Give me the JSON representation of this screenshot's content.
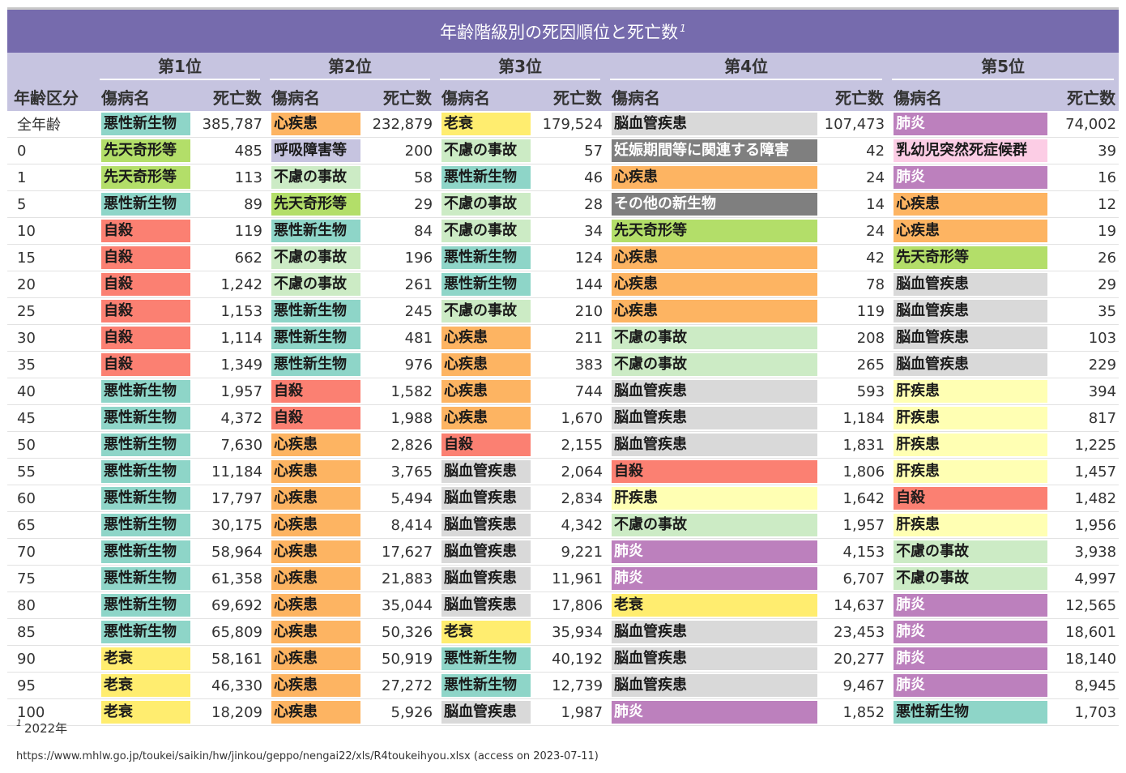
{
  "title": "年齢階級別の死因順位と死亡数",
  "title_note_mark": "1",
  "header": {
    "ranks": [
      "第1位",
      "第2位",
      "第3位",
      "第4位",
      "第5位"
    ],
    "age_label": "年齢区分",
    "cause_label": "傷病名",
    "count_label": "死亡数"
  },
  "colors": {
    "悪性新生物": "#8ed5c8",
    "心疾患": "#fdb462",
    "老衰": "#ffed6f",
    "脳血管疾患": "#d9d9d9",
    "肺炎": "#bc80bd",
    "先天奇形等": "#b3de69",
    "呼吸障害等": "#c6c4e0",
    "不慮の事故": "#ccebc5",
    "妊娠期間等に関連する障害": "#7f7f7f",
    "乳幼児突然死症候群": "#fccde5",
    "自殺": "#fb8072",
    "その他の新生物": "#7f7f7f",
    "肝疾患": "#ffffb3"
  },
  "rows": [
    {
      "age": "全年齢",
      "causes": [
        [
          "悪性新生物",
          "385,787"
        ],
        [
          "心疾患",
          "232,879"
        ],
        [
          "老衰",
          "179,524"
        ],
        [
          "脳血管疾患",
          "107,473"
        ],
        [
          "肺炎",
          "74,002"
        ]
      ]
    },
    {
      "age": "0",
      "causes": [
        [
          "先天奇形等",
          "485"
        ],
        [
          "呼吸障害等",
          "200"
        ],
        [
          "不慮の事故",
          "57"
        ],
        [
          "妊娠期間等に関連する障害",
          "42"
        ],
        [
          "乳幼児突然死症候群",
          "39"
        ]
      ]
    },
    {
      "age": "1",
      "causes": [
        [
          "先天奇形等",
          "113"
        ],
        [
          "不慮の事故",
          "58"
        ],
        [
          "悪性新生物",
          "46"
        ],
        [
          "心疾患",
          "24"
        ],
        [
          "肺炎",
          "16"
        ]
      ]
    },
    {
      "age": "5",
      "causes": [
        [
          "悪性新生物",
          "89"
        ],
        [
          "先天奇形等",
          "29"
        ],
        [
          "不慮の事故",
          "28"
        ],
        [
          "その他の新生物",
          "14"
        ],
        [
          "心疾患",
          "12"
        ]
      ]
    },
    {
      "age": "10",
      "causes": [
        [
          "自殺",
          "119"
        ],
        [
          "悪性新生物",
          "84"
        ],
        [
          "不慮の事故",
          "34"
        ],
        [
          "先天奇形等",
          "24"
        ],
        [
          "心疾患",
          "19"
        ]
      ]
    },
    {
      "age": "15",
      "causes": [
        [
          "自殺",
          "662"
        ],
        [
          "不慮の事故",
          "196"
        ],
        [
          "悪性新生物",
          "124"
        ],
        [
          "心疾患",
          "42"
        ],
        [
          "先天奇形等",
          "26"
        ]
      ]
    },
    {
      "age": "20",
      "causes": [
        [
          "自殺",
          "1,242"
        ],
        [
          "不慮の事故",
          "261"
        ],
        [
          "悪性新生物",
          "144"
        ],
        [
          "心疾患",
          "78"
        ],
        [
          "脳血管疾患",
          "29"
        ]
      ]
    },
    {
      "age": "25",
      "causes": [
        [
          "自殺",
          "1,153"
        ],
        [
          "悪性新生物",
          "245"
        ],
        [
          "不慮の事故",
          "210"
        ],
        [
          "心疾患",
          "119"
        ],
        [
          "脳血管疾患",
          "35"
        ]
      ]
    },
    {
      "age": "30",
      "causes": [
        [
          "自殺",
          "1,114"
        ],
        [
          "悪性新生物",
          "481"
        ],
        [
          "心疾患",
          "211"
        ],
        [
          "不慮の事故",
          "208"
        ],
        [
          "脳血管疾患",
          "103"
        ]
      ]
    },
    {
      "age": "35",
      "causes": [
        [
          "自殺",
          "1,349"
        ],
        [
          "悪性新生物",
          "976"
        ],
        [
          "心疾患",
          "383"
        ],
        [
          "不慮の事故",
          "265"
        ],
        [
          "脳血管疾患",
          "229"
        ]
      ]
    },
    {
      "age": "40",
      "causes": [
        [
          "悪性新生物",
          "1,957"
        ],
        [
          "自殺",
          "1,582"
        ],
        [
          "心疾患",
          "744"
        ],
        [
          "脳血管疾患",
          "593"
        ],
        [
          "肝疾患",
          "394"
        ]
      ]
    },
    {
      "age": "45",
      "causes": [
        [
          "悪性新生物",
          "4,372"
        ],
        [
          "自殺",
          "1,988"
        ],
        [
          "心疾患",
          "1,670"
        ],
        [
          "脳血管疾患",
          "1,184"
        ],
        [
          "肝疾患",
          "817"
        ]
      ]
    },
    {
      "age": "50",
      "causes": [
        [
          "悪性新生物",
          "7,630"
        ],
        [
          "心疾患",
          "2,826"
        ],
        [
          "自殺",
          "2,155"
        ],
        [
          "脳血管疾患",
          "1,831"
        ],
        [
          "肝疾患",
          "1,225"
        ]
      ]
    },
    {
      "age": "55",
      "causes": [
        [
          "悪性新生物",
          "11,184"
        ],
        [
          "心疾患",
          "3,765"
        ],
        [
          "脳血管疾患",
          "2,064"
        ],
        [
          "自殺",
          "1,806"
        ],
        [
          "肝疾患",
          "1,457"
        ]
      ]
    },
    {
      "age": "60",
      "causes": [
        [
          "悪性新生物",
          "17,797"
        ],
        [
          "心疾患",
          "5,494"
        ],
        [
          "脳血管疾患",
          "2,834"
        ],
        [
          "肝疾患",
          "1,642"
        ],
        [
          "自殺",
          "1,482"
        ]
      ]
    },
    {
      "age": "65",
      "causes": [
        [
          "悪性新生物",
          "30,175"
        ],
        [
          "心疾患",
          "8,414"
        ],
        [
          "脳血管疾患",
          "4,342"
        ],
        [
          "不慮の事故",
          "1,957"
        ],
        [
          "肝疾患",
          "1,956"
        ]
      ]
    },
    {
      "age": "70",
      "causes": [
        [
          "悪性新生物",
          "58,964"
        ],
        [
          "心疾患",
          "17,627"
        ],
        [
          "脳血管疾患",
          "9,221"
        ],
        [
          "肺炎",
          "4,153"
        ],
        [
          "不慮の事故",
          "3,938"
        ]
      ]
    },
    {
      "age": "75",
      "causes": [
        [
          "悪性新生物",
          "61,358"
        ],
        [
          "心疾患",
          "21,883"
        ],
        [
          "脳血管疾患",
          "11,961"
        ],
        [
          "肺炎",
          "6,707"
        ],
        [
          "不慮の事故",
          "4,997"
        ]
      ]
    },
    {
      "age": "80",
      "causes": [
        [
          "悪性新生物",
          "69,692"
        ],
        [
          "心疾患",
          "35,044"
        ],
        [
          "脳血管疾患",
          "17,806"
        ],
        [
          "老衰",
          "14,637"
        ],
        [
          "肺炎",
          "12,565"
        ]
      ]
    },
    {
      "age": "85",
      "causes": [
        [
          "悪性新生物",
          "65,809"
        ],
        [
          "心疾患",
          "50,326"
        ],
        [
          "老衰",
          "35,934"
        ],
        [
          "脳血管疾患",
          "23,453"
        ],
        [
          "肺炎",
          "18,601"
        ]
      ]
    },
    {
      "age": "90",
      "causes": [
        [
          "老衰",
          "58,161"
        ],
        [
          "心疾患",
          "50,919"
        ],
        [
          "悪性新生物",
          "40,192"
        ],
        [
          "脳血管疾患",
          "20,277"
        ],
        [
          "肺炎",
          "18,140"
        ]
      ]
    },
    {
      "age": "95",
      "causes": [
        [
          "老衰",
          "46,330"
        ],
        [
          "心疾患",
          "27,272"
        ],
        [
          "悪性新生物",
          "12,739"
        ],
        [
          "脳血管疾患",
          "9,467"
        ],
        [
          "肺炎",
          "8,945"
        ]
      ]
    },
    {
      "age": "100",
      "causes": [
        [
          "老衰",
          "18,209"
        ],
        [
          "心疾患",
          "5,926"
        ],
        [
          "脳血管疾患",
          "1,987"
        ],
        [
          "肺炎",
          "1,852"
        ],
        [
          "悪性新生物",
          "1,703"
        ]
      ]
    }
  ],
  "footnote": {
    "mark": "1",
    "text": "2022年"
  },
  "source": "https://www.mhlw.go.jp/toukei/saikin/hw/jinkou/geppo/nengai22/xls/R4toukeihyou.xlsx (access on 2023-07-11)"
}
